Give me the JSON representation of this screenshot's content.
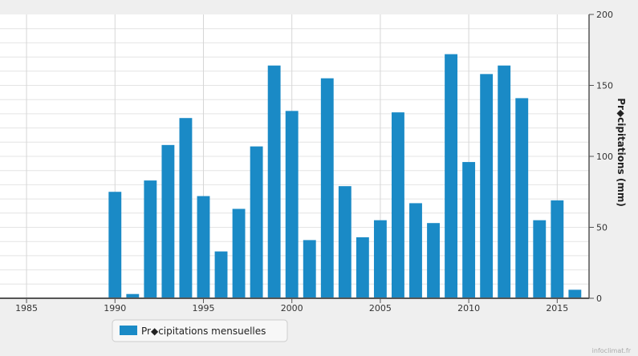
{
  "chart_data": {
    "type": "bar",
    "title": "",
    "xlabel": "",
    "ylabel": "Précipitations (mm)",
    "ylabel_display": "Pr◆cipitations (mm)",
    "y_axis_side": "right",
    "ylim": [
      0,
      200
    ],
    "yticks": [
      0,
      50,
      100,
      150,
      200
    ],
    "xlim": [
      1983.5,
      2016.8
    ],
    "xticks": [
      1985,
      1990,
      1995,
      2000,
      2005,
      2010,
      2015
    ],
    "grid": true,
    "legend_position": "bottom-left",
    "series": [
      {
        "name": "Précipitations mensuelles",
        "name_display": "Pr◆cipitations mensuelles",
        "color": "#1a8ac6",
        "x": [
          1990,
          1991,
          1992,
          1993,
          1994,
          1995,
          1996,
          1997,
          1998,
          1999,
          2000,
          2001,
          2002,
          2003,
          2004,
          2005,
          2006,
          2007,
          2008,
          2009,
          2010,
          2011,
          2012,
          2013,
          2014,
          2015,
          2016
        ],
        "values": [
          75,
          3,
          83,
          108,
          127,
          72,
          33,
          63,
          107,
          164,
          132,
          41,
          155,
          79,
          43,
          55,
          131,
          67,
          53,
          172,
          96,
          158,
          164,
          141,
          55,
          69,
          6
        ]
      }
    ]
  },
  "credit": "infoclimat.fr"
}
